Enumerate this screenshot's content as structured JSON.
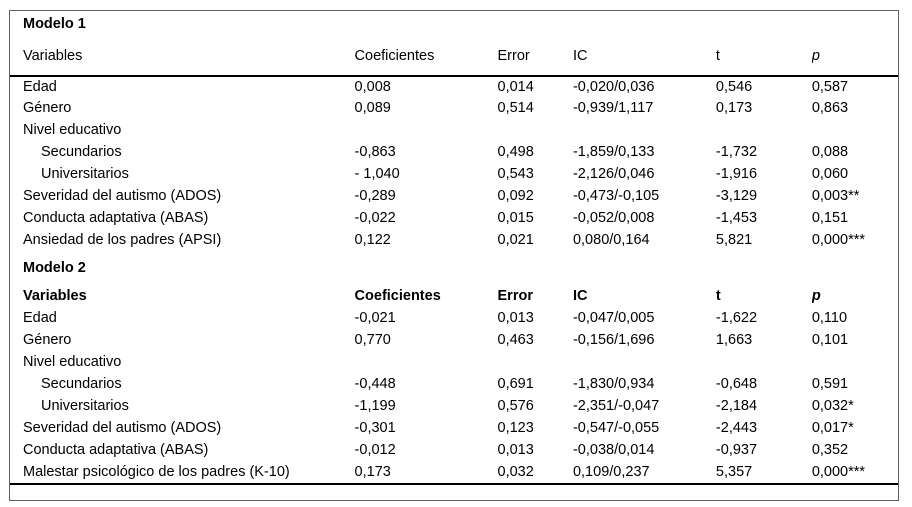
{
  "table": {
    "columns": [
      "Variables",
      "Coeficientes",
      "Error",
      "IC",
      "t",
      "p"
    ],
    "column_keys": [
      "coeficiente",
      "error",
      "ic",
      "t",
      "p"
    ],
    "border_colors": {
      "outer_frame": "#5f5f5f",
      "rule": "#000000"
    },
    "models": [
      {
        "title": "Modelo 1",
        "header_bold": false,
        "rows": [
          {
            "label": "Edad",
            "indent": false,
            "values": [
              "0,008",
              "0,014",
              "-0,020/0,036",
              "0,546",
              "0,587"
            ]
          },
          {
            "label": "Género",
            "indent": false,
            "values": [
              "0,089",
              "0,514",
              "-0,939/1,117",
              "0,173",
              "0,863"
            ]
          },
          {
            "label": "Nivel educativo",
            "indent": false,
            "values": [
              "",
              "",
              "",
              "",
              ""
            ]
          },
          {
            "label": "Secundarios",
            "indent": true,
            "values": [
              "-0,863",
              "0,498",
              "-1,859/0,133",
              "-1,732",
              "0,088"
            ]
          },
          {
            "label": "Universitarios",
            "indent": true,
            "values": [
              "- 1,040",
              "0,543",
              "-2,126/0,046",
              "-1,916",
              "0,060"
            ]
          },
          {
            "label": "Severidad del autismo (ADOS)",
            "indent": false,
            "values": [
              "-0,289",
              "0,092",
              "-0,473/-0,105",
              "-3,129",
              "0,003**"
            ]
          },
          {
            "label": "Conducta adaptativa (ABAS)",
            "indent": false,
            "values": [
              "-0,022",
              "0,015",
              "-0,052/0,008",
              "-1,453",
              "0,151"
            ]
          },
          {
            "label": "Ansiedad de los padres (APSI)",
            "indent": false,
            "values": [
              "0,122",
              "0,021",
              "0,080/0,164",
              "5,821",
              "0,000***"
            ]
          }
        ]
      },
      {
        "title": "Modelo 2",
        "header_bold": true,
        "rows": [
          {
            "label": "Edad",
            "indent": false,
            "values": [
              "-0,021",
              "0,013",
              "-0,047/0,005",
              "-1,622",
              "0,110"
            ]
          },
          {
            "label": "Género",
            "indent": false,
            "values": [
              "0,770",
              "0,463",
              "-0,156/1,696",
              "1,663",
              "0,101"
            ]
          },
          {
            "label": "Nivel educativo",
            "indent": false,
            "values": [
              "",
              "",
              "",
              "",
              ""
            ]
          },
          {
            "label": "Secundarios",
            "indent": true,
            "values": [
              "-0,448",
              "0,691",
              "-1,830/0,934",
              "-0,648",
              "0,591"
            ]
          },
          {
            "label": "Universitarios",
            "indent": true,
            "values": [
              "-1,199",
              "0,576",
              "-2,351/-0,047",
              "-2,184",
              "0,032*"
            ]
          },
          {
            "label": "Severidad del autismo (ADOS)",
            "indent": false,
            "values": [
              "-0,301",
              "0,123",
              "-0,547/-0,055",
              "-2,443",
              "0,017*"
            ]
          },
          {
            "label": "Conducta adaptativa (ABAS)",
            "indent": false,
            "values": [
              "-0,012",
              "0,013",
              "-0,038/0,014",
              "-0,937",
              "0,352"
            ]
          },
          {
            "label": "Malestar psicológico de los padres (K-10)",
            "indent": false,
            "values": [
              "0,173",
              "0,032",
              "0,109/0,237",
              "5,357",
              "0,000***"
            ]
          }
        ]
      }
    ]
  }
}
